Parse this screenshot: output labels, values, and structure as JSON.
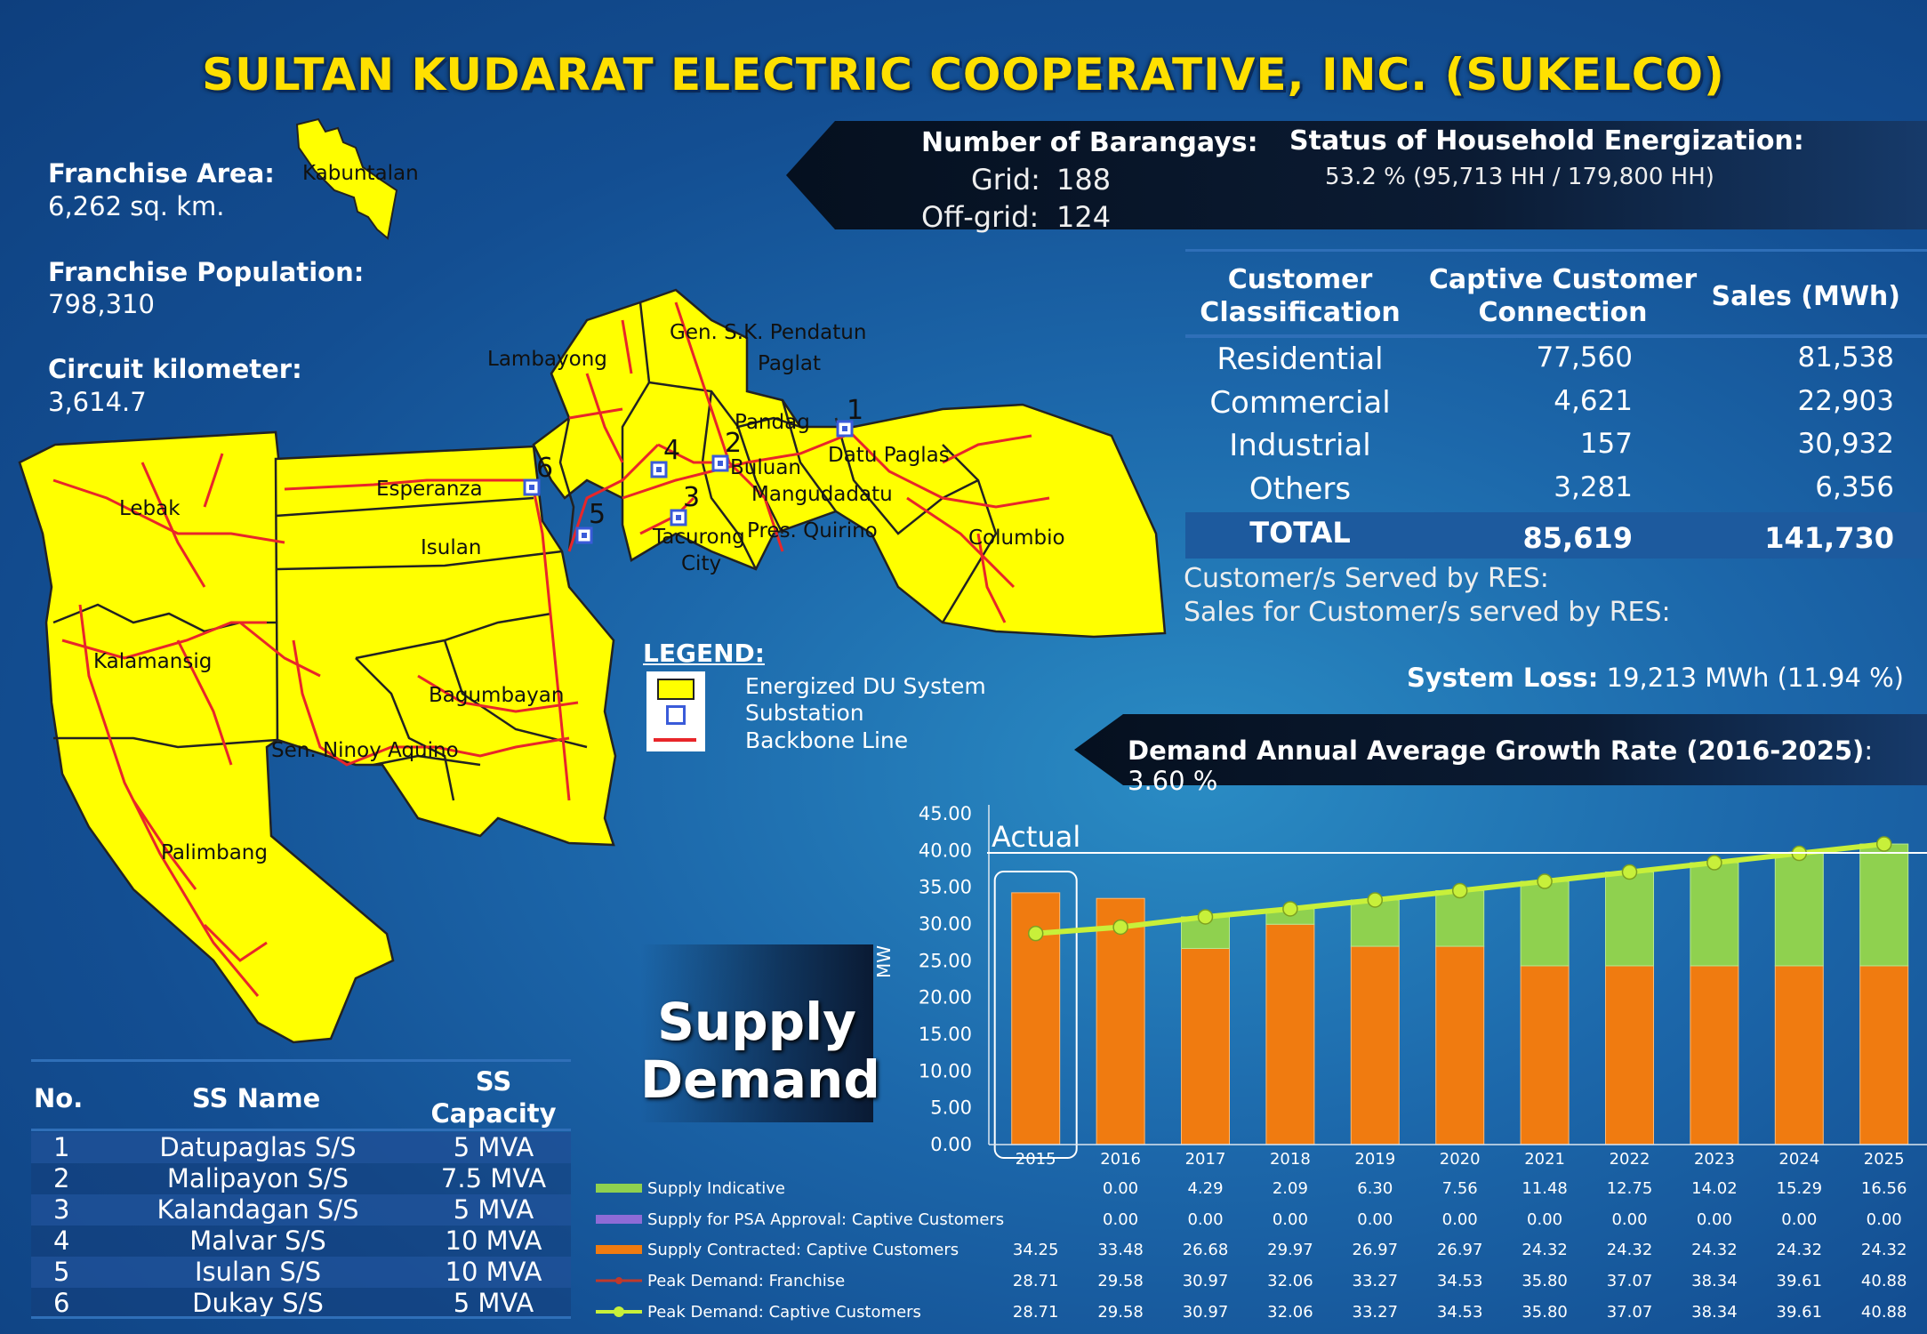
{
  "title": "SULTAN KUDARAT ELECTRIC COOPERATIVE, INC. (SUKELCO)",
  "franchise": {
    "area_label": "Franchise Area:",
    "area_value": "6,262 sq. km.",
    "population_label": "Franchise Population:",
    "population_value": "798,310",
    "circuit_label": "Circuit kilometer:",
    "circuit_value": "3,614.7"
  },
  "barangays": {
    "label": "Number of Barangays:",
    "grid_label": "Grid:",
    "grid_value": "188",
    "offgrid_label": "Off-grid:",
    "offgrid_value": "124"
  },
  "energization": {
    "label": "Status of Household Energization:",
    "value": "53.2 % (95,713 HH / 179,800 HH)"
  },
  "customer_table": {
    "headers": [
      "Customer Classification",
      "Captive Customer Connection",
      "Sales (MWh)"
    ],
    "rows": [
      {
        "class": "Residential",
        "connections": "77,560",
        "sales": "81,538"
      },
      {
        "class": "Commercial",
        "connections": "4,621",
        "sales": "22,903"
      },
      {
        "class": "Industrial",
        "connections": "157",
        "sales": "30,932"
      },
      {
        "class": "Others",
        "connections": "3,281",
        "sales": "6,356"
      }
    ],
    "total": {
      "class": "TOTAL",
      "connections": "85,619",
      "sales": "141,730"
    }
  },
  "res": {
    "served": "Customer/s Served by RES:",
    "sales": "Sales for Customer/s served by RES:"
  },
  "system_loss": {
    "label": "System Loss:",
    "value": "19,213 MWh (11.94 %)"
  },
  "growth": {
    "label": "Demand Annual Average Growth Rate (2016-2025)",
    "value": ": 3.60 %"
  },
  "map": {
    "kabuntalan": "Kabuntalan",
    "labels": [
      "Gen. S.K. Pendatun",
      "Lambayong",
      "Paglat",
      "Pandag",
      "Datu Paglas",
      "Buluan",
      "Mangudadatu",
      "Pres. Quirino",
      "Tacurong",
      "City",
      "Columbio",
      "Lebak",
      "Esperanza",
      "Isulan",
      "Kalamansig",
      "Bagumbayan",
      "Sen. Ninoy Aquino",
      "Palimbang"
    ],
    "substation_numbers": [
      "1",
      "2",
      "3",
      "4",
      "5",
      "6"
    ]
  },
  "legend": {
    "title": "LEGEND:",
    "items": [
      "Energized DU System",
      "Substation",
      "Backbone Line"
    ],
    "colors": {
      "energized": "#ffff00",
      "substation": "#3a5bd9",
      "backbone": "#e8262a"
    }
  },
  "ss_table": {
    "headers": {
      "no": "No.",
      "name": "SS Name",
      "capacity_line1": "SS",
      "capacity_line2": "Capacity"
    },
    "rows": [
      {
        "no": "1",
        "name": "Datupaglas S/S",
        "capacity": "5 MVA"
      },
      {
        "no": "2",
        "name": "Malipayon S/S",
        "capacity": "7.5 MVA"
      },
      {
        "no": "3",
        "name": "Kalandagan S/S",
        "capacity": "5 MVA"
      },
      {
        "no": "4",
        "name": "Malvar S/S",
        "capacity": "10 MVA"
      },
      {
        "no": "5",
        "name": "Isulan S/S",
        "capacity": "10 MVA"
      },
      {
        "no": "6",
        "name": "Dukay S/S",
        "capacity": "5 MVA"
      }
    ]
  },
  "supply_demand_box": {
    "line1": "Supply",
    "line2": "Demand"
  },
  "chart_data": {
    "type": "bar",
    "categories": [
      "2015",
      "2016",
      "2017",
      "2018",
      "2019",
      "2020",
      "2021",
      "2022",
      "2023",
      "2024",
      "2025"
    ],
    "ylabel": "MW",
    "ylim": [
      0,
      45
    ],
    "yticks": [
      "0.00",
      "5.00",
      "10.00",
      "15.00",
      "20.00",
      "25.00",
      "30.00",
      "35.00",
      "40.00",
      "45.00"
    ],
    "annotation": "Actual",
    "stacked": true,
    "series": [
      {
        "name": "Supply Indicative",
        "values": [
          null,
          0.0,
          4.29,
          2.09,
          6.3,
          7.56,
          11.48,
          12.75,
          14.02,
          15.29,
          16.56
        ],
        "labels": [
          "",
          "0.00",
          "4.29",
          "2.09",
          "6.30",
          "7.56",
          "11.48",
          "12.75",
          "14.02",
          "15.29",
          "16.56"
        ],
        "color": "#8fd14f"
      },
      {
        "name": "Supply for PSA Approval:  Captive Customers",
        "values": [
          null,
          0.0,
          0.0,
          0.0,
          0.0,
          0.0,
          0.0,
          0.0,
          0.0,
          0.0,
          0.0
        ],
        "labels": [
          "",
          "0.00",
          "0.00",
          "0.00",
          "0.00",
          "0.00",
          "0.00",
          "0.00",
          "0.00",
          "0.00",
          "0.00"
        ],
        "color": "#8e6bd6"
      },
      {
        "name": "Supply Contracted:  Captive Customers",
        "values": [
          34.25,
          33.48,
          26.68,
          29.97,
          26.97,
          26.97,
          24.32,
          24.32,
          24.32,
          24.32,
          24.32
        ],
        "labels": [
          "34.25",
          "33.48",
          "26.68",
          "29.97",
          "26.97",
          "26.97",
          "24.32",
          "24.32",
          "24.32",
          "24.32",
          "24.32"
        ],
        "color": "#f07b10"
      },
      {
        "name": "Peak Demand:  Franchise",
        "type": "line",
        "values": [
          28.71,
          29.58,
          30.97,
          32.06,
          33.27,
          34.53,
          35.8,
          37.07,
          38.34,
          39.61,
          40.88
        ],
        "labels": [
          "28.71",
          "29.58",
          "30.97",
          "32.06",
          "33.27",
          "34.53",
          "35.80",
          "37.07",
          "38.34",
          "39.61",
          "40.88"
        ],
        "color": "#c0392b"
      },
      {
        "name": "Peak Demand:  Captive Customers",
        "type": "line",
        "values": [
          28.71,
          29.58,
          30.97,
          32.06,
          33.27,
          34.53,
          35.8,
          37.07,
          38.34,
          39.61,
          40.88
        ],
        "labels": [
          "28.71",
          "29.58",
          "30.97",
          "32.06",
          "33.27",
          "34.53",
          "35.80",
          "37.07",
          "38.34",
          "39.61",
          "40.88"
        ],
        "color": "#c8f03a"
      }
    ]
  }
}
